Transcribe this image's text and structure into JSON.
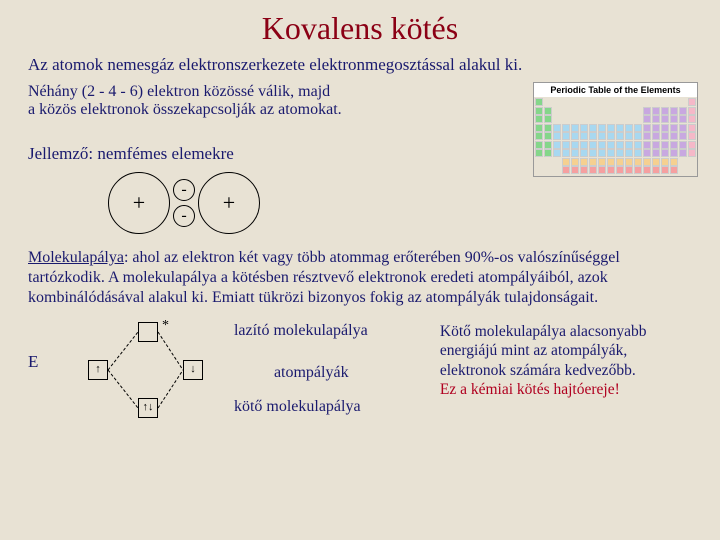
{
  "title": "Kovalens kötés",
  "subtitle": "Az atomok nemesgáz elektronszerkezete elektronmegosztással alakul ki.",
  "para1_line1": "Néhány (2 - 4 - 6) elektron közössé válik, majd",
  "para1_line2": "a közös elektronok összekapcsolják az atomokat.",
  "ptable_title": "Periodic Table of the Elements",
  "jellemzo": "Jellemző: nemfémes elemekre",
  "nucleus1": "+",
  "electron1": "-",
  "electron2": "-",
  "nucleus2": "+",
  "molekula_text": "Molekulapálya: ahol az elektron két vagy több atommag erőterében 90%-os valószínűséggel tartózkodik. A molekulapálya a kötésben résztvevő elektronok eredeti atompályáiból, azok kombinálódásával alakul ki. Emiatt tükrözi bizonyos fokig az atompályák tulajdonságait.",
  "molekula_underline": "Molekulapálya",
  "e_label": "E",
  "asterisk": "*",
  "label_lazito": "lazító molekulapálya",
  "label_atom": "atompályák",
  "label_koto": "kötő molekulapálya",
  "side1": "Kötő molekulapálya alacsonyabb energiájú mint az atompályák, elektronok számára kedvezőbb.",
  "side2": "Ez a kémiai kötés hajtóereje!",
  "colors": {
    "background": "#e8e2d4",
    "title": "#8b0015",
    "text": "#1a1a6e",
    "red_highlight": "#b00020"
  },
  "periodic_colors": [
    "#85d68a",
    "#f5b8c8",
    "#c8a8e0",
    "#a8d8f0",
    "#f5d090",
    "#f5a0a0",
    "#c0e8c0",
    "#f0e090",
    "#d0d0d0",
    "#b0f0d0"
  ]
}
